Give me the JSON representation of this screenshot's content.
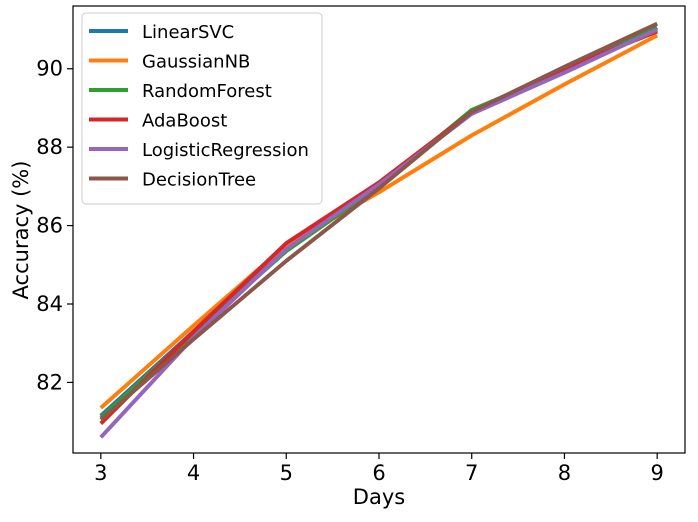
{
  "chart_data": {
    "type": "line",
    "title": "",
    "xlabel": "Days",
    "ylabel": "Accuracy (%)",
    "x": [
      3,
      4,
      5,
      6,
      7,
      8,
      9
    ],
    "xlim": [
      2.7,
      9.3
    ],
    "ylim": [
      80.2,
      91.6
    ],
    "xticks": [
      3,
      4,
      5,
      6,
      7,
      8,
      9
    ],
    "yticks": [
      82,
      84,
      86,
      88,
      90
    ],
    "grid": false,
    "legend_position": "top-left",
    "series": [
      {
        "name": "LinearSVC",
        "color": "#1f77b4",
        "values": [
          81.15,
          83.3,
          85.45,
          87.05,
          88.9,
          89.95,
          91.0
        ]
      },
      {
        "name": "GaussianNB",
        "color": "#ff7f0e",
        "values": [
          81.35,
          83.45,
          85.5,
          86.85,
          88.3,
          89.6,
          90.85
        ]
      },
      {
        "name": "RandomForest",
        "color": "#2ca02c",
        "values": [
          81.1,
          83.25,
          85.35,
          87.0,
          88.95,
          89.95,
          91.05
        ]
      },
      {
        "name": "AdaBoost",
        "color": "#d62728",
        "values": [
          80.95,
          83.3,
          85.55,
          87.1,
          88.9,
          90.0,
          90.95
        ]
      },
      {
        "name": "LogisticRegression",
        "color": "#9467bd",
        "values": [
          80.6,
          83.15,
          85.4,
          87.05,
          88.85,
          89.9,
          91.0
        ]
      },
      {
        "name": "DecisionTree",
        "color": "#8c564b",
        "values": [
          81.05,
          83.1,
          85.1,
          86.95,
          88.9,
          90.05,
          91.15
        ]
      }
    ]
  }
}
